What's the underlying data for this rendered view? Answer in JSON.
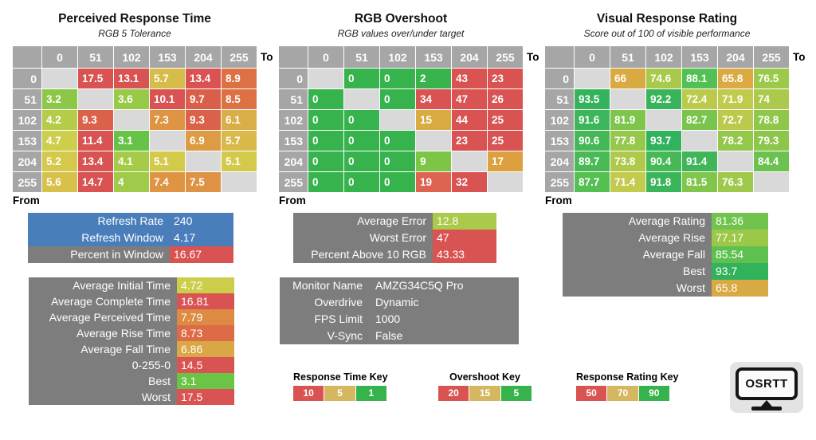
{
  "colors": {
    "header_bg": "#a6a6a6",
    "blank_bg": "#d9d9d9",
    "panel_gray": "#7d7d7d",
    "accent_blue": "#4a7ebb",
    "status_red": "#d85352",
    "status_gold": "#d4b75e",
    "status_green": "#36b34c"
  },
  "chart_data": [
    {
      "type": "heatmap",
      "title": "Perceived Response Time",
      "subtitle": "RGB 5 Tolerance",
      "x_label": "To",
      "y_label": "From",
      "categories": [
        "0",
        "51",
        "102",
        "153",
        "204",
        "255"
      ],
      "values": [
        [
          null,
          17.5,
          13.1,
          5.7,
          13.4,
          8.9
        ],
        [
          3.2,
          null,
          3.6,
          10.1,
          9.7,
          8.5
        ],
        [
          4.2,
          9.3,
          null,
          7.3,
          9.3,
          6.1
        ],
        [
          4.7,
          11.4,
          3.1,
          null,
          6.9,
          5.7
        ],
        [
          5.2,
          13.4,
          4.1,
          5.1,
          null,
          5.1
        ],
        [
          5.6,
          14.7,
          4,
          7.4,
          7.5,
          null
        ]
      ],
      "cell_colors": [
        [
          null,
          "#d85352",
          "#d85352",
          "#d6bd4a",
          "#d85352",
          "#dc7243"
        ],
        [
          "#8dc747",
          null,
          "#98c947",
          "#d85352",
          "#da5f4b",
          "#dc7243"
        ],
        [
          "#b4cc4a",
          "#da624a",
          null,
          "#de9443",
          "#da624a",
          "#d9ae48"
        ],
        [
          "#cdce4b",
          "#d85352",
          "#66c348",
          null,
          "#dd9b44",
          "#d8b94a"
        ],
        [
          "#d5c94c",
          "#d85352",
          "#a6cb49",
          "#d3ca4c",
          null,
          "#d3ca4c"
        ],
        [
          "#d8c14b",
          "#d85352",
          "#a0ca49",
          "#de9443",
          "#de9243",
          null
        ]
      ]
    },
    {
      "type": "heatmap",
      "title": "RGB Overshoot",
      "subtitle": "RGB values over/under target",
      "x_label": "To",
      "y_label": "From",
      "categories": [
        "0",
        "51",
        "102",
        "153",
        "204",
        "255"
      ],
      "values": [
        [
          null,
          0,
          0,
          2,
          43,
          23
        ],
        [
          0,
          null,
          0,
          34,
          47,
          26
        ],
        [
          0,
          0,
          null,
          15,
          44,
          25
        ],
        [
          0,
          0,
          0,
          null,
          23,
          25
        ],
        [
          0,
          0,
          0,
          9,
          null,
          17
        ],
        [
          0,
          0,
          0,
          19,
          32,
          null
        ]
      ],
      "cell_colors": [
        [
          null,
          "#36b34c",
          "#36b34c",
          "#39b44c",
          "#d85352",
          "#d85352"
        ],
        [
          "#36b34c",
          null,
          "#36b34c",
          "#d85352",
          "#d85352",
          "#d85352"
        ],
        [
          "#36b34c",
          "#36b34c",
          null,
          "#d9ab43",
          "#d85352",
          "#d85352"
        ],
        [
          "#36b34c",
          "#36b34c",
          "#36b34c",
          null,
          "#d85352",
          "#d85352"
        ],
        [
          "#36b34c",
          "#36b34c",
          "#36b34c",
          "#7dc544",
          null,
          "#dda03f"
        ],
        [
          "#36b34c",
          "#36b34c",
          "#36b34c",
          "#dd6450",
          "#d85352",
          null
        ]
      ]
    },
    {
      "type": "heatmap",
      "title": "Visual Response Rating",
      "subtitle": "Score out of 100 of visible performance",
      "x_label": "To",
      "y_label": "From",
      "categories": [
        "0",
        "51",
        "102",
        "153",
        "204",
        "255"
      ],
      "values": [
        [
          null,
          66,
          74.6,
          88.1,
          65.8,
          76.5
        ],
        [
          93.5,
          null,
          92.2,
          72.4,
          71.9,
          74
        ],
        [
          91.6,
          81.9,
          null,
          82.7,
          72.7,
          78.8
        ],
        [
          90.6,
          77.8,
          93.7,
          null,
          78.2,
          79.3
        ],
        [
          89.7,
          73.8,
          90.4,
          91.4,
          null,
          84.4
        ],
        [
          87.7,
          71.4,
          91.8,
          81.5,
          76.3,
          null
        ]
      ],
      "cell_colors": [
        [
          null,
          "#d9a942",
          "#a8c94a",
          "#52c053",
          "#dbaa43",
          "#9cc94a"
        ],
        [
          "#35b35c",
          null,
          "#3ab45a",
          "#bcca4c",
          "#c0cb4d",
          "#adc94b"
        ],
        [
          "#3db55a",
          "#7dc54c",
          null,
          "#78c44c",
          "#bbca4c",
          "#8fc74b"
        ],
        [
          "#44b857",
          "#97c84b",
          "#32b25d",
          null,
          "#94c84b",
          "#8cc74b"
        ],
        [
          "#49ba55",
          "#b0c94b",
          "#46b957",
          "#40b659",
          null,
          "#6cc24e"
        ],
        [
          "#55bf52",
          "#c2cb4d",
          "#3bb45a",
          "#80c54c",
          "#9fc94a",
          null
        ]
      ]
    }
  ],
  "panels": {
    "refresh": {
      "rows": [
        {
          "label": "Refresh Rate",
          "value": "240",
          "label_bg": "#4a7ebb",
          "value_bg": "#4a7ebb"
        },
        {
          "label": "Refresh Window",
          "value": "4.17",
          "label_bg": "#4a7ebb",
          "value_bg": "#4a7ebb"
        },
        {
          "label": "Percent in Window",
          "value": "16.67",
          "label_bg": "#7d7d7d",
          "value_bg": "#d85352"
        }
      ]
    },
    "errors": {
      "rows": [
        {
          "label": "Average Error",
          "value": "12.8",
          "value_bg": "#abc94a"
        },
        {
          "label": "Worst Error",
          "value": "47",
          "value_bg": "#d85352"
        },
        {
          "label": "Percent Above 10 RGB",
          "value": "43.33",
          "value_bg": "#d85352"
        }
      ]
    },
    "ratings": {
      "rows": [
        {
          "label": "Average Rating",
          "value": "81.36",
          "value_bg": "#72c34d"
        },
        {
          "label": "Average Rise",
          "value": "77.17",
          "value_bg": "#9cc84a"
        },
        {
          "label": "Average Fall",
          "value": "85.54",
          "value_bg": "#5ec14f"
        },
        {
          "label": "Best",
          "value": "93.7",
          "value_bg": "#33b25c"
        },
        {
          "label": "Worst",
          "value": "65.8",
          "value_bg": "#d9a943"
        }
      ]
    },
    "times": {
      "rows": [
        {
          "label": "Average Initial Time",
          "value": "4.72",
          "value_bg": "#cccd4b"
        },
        {
          "label": "Average Complete Time",
          "value": "16.81",
          "value_bg": "#d85352"
        },
        {
          "label": "Average Perceived Time",
          "value": "7.79",
          "value_bg": "#dd8a42"
        },
        {
          "label": "Average Rise Time",
          "value": "8.73",
          "value_bg": "#dc6b46"
        },
        {
          "label": "Average Fall Time",
          "value": "6.86",
          "value_bg": "#d9a746"
        },
        {
          "label": "0-255-0",
          "value": "14.5",
          "value_bg": "#d85352"
        },
        {
          "label": "Best",
          "value": "3.1",
          "value_bg": "#6cc446"
        },
        {
          "label": "Worst",
          "value": "17.5",
          "value_bg": "#d85352"
        }
      ]
    },
    "monitor": {
      "rows": [
        {
          "label": "Monitor Name",
          "value": "AMZG34C5Q Pro"
        },
        {
          "label": "Overdrive",
          "value": "Dynamic"
        },
        {
          "label": "FPS Limit",
          "value": "1000"
        },
        {
          "label": "V-Sync",
          "value": "False"
        }
      ]
    }
  },
  "keys": [
    {
      "title": "Response Time Key",
      "cells": [
        {
          "label": "10",
          "bg": "#d85352"
        },
        {
          "label": "5",
          "bg": "#d4b75e"
        },
        {
          "label": "1",
          "bg": "#36b34c"
        }
      ]
    },
    {
      "title": "Overshoot Key",
      "cells": [
        {
          "label": "20",
          "bg": "#d85352"
        },
        {
          "label": "15",
          "bg": "#d4b75e"
        },
        {
          "label": "5",
          "bg": "#36b34c"
        }
      ]
    },
    {
      "title": "Response Rating Key",
      "cells": [
        {
          "label": "50",
          "bg": "#d85352"
        },
        {
          "label": "70",
          "bg": "#d4b75e"
        },
        {
          "label": "90",
          "bg": "#36b34c"
        }
      ]
    }
  ],
  "logo": {
    "text": "OSRTT"
  }
}
